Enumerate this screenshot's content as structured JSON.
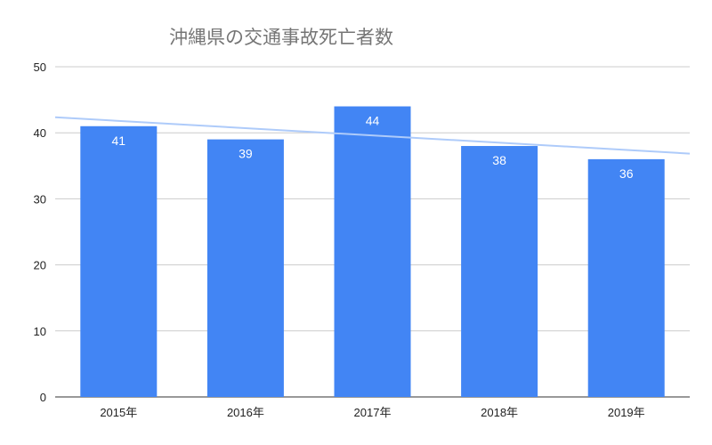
{
  "chart_data": {
    "type": "bar",
    "title": "沖縄県の交通事故死亡者数",
    "categories": [
      "2015年",
      "2016年",
      "2017年",
      "2018年",
      "2019年"
    ],
    "series": [
      {
        "values": [
          41,
          39,
          44,
          38,
          36
        ],
        "color": "#4285f4"
      }
    ],
    "data_labels": [
      "41",
      "39",
      "44",
      "38",
      "36"
    ],
    "ylim": [
      0,
      50
    ],
    "yticks": [
      0,
      10,
      20,
      30,
      40,
      50
    ],
    "grid": true,
    "trendline": {
      "type": "linear",
      "color": "#aecbfa"
    },
    "legend": "none"
  }
}
